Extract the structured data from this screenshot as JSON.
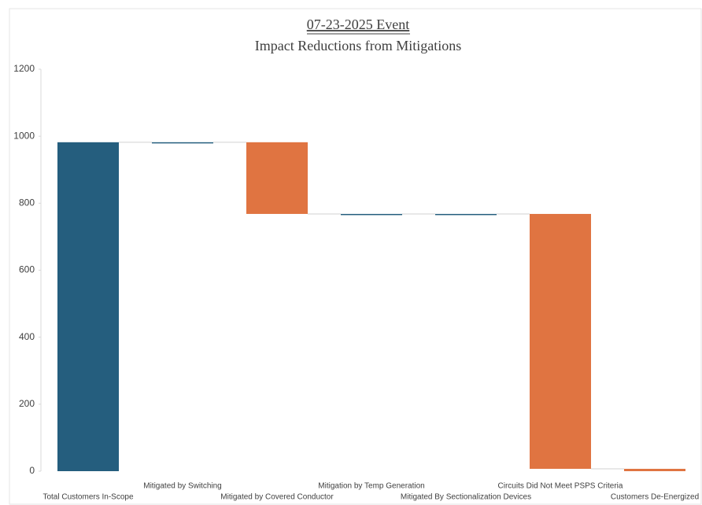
{
  "chart_data": {
    "type": "waterfall",
    "title": "07-23-2025 Event",
    "subtitle": "Impact Reductions from Mitigations",
    "categories": [
      "Total Customers In-Scope",
      "Mitigated by Switching",
      "Mitigated by Covered Conductor",
      "Mitigation by Temp Generation",
      "Mitigated By Sectionalization Devices",
      "Circuits Did Not Meet PSPS Criteria",
      "Customers De-Energized"
    ],
    "values": [
      982,
      0,
      -214,
      0,
      0,
      -761,
      7
    ],
    "is_total": [
      true,
      false,
      false,
      false,
      false,
      false,
      true
    ],
    "colors": [
      "#255e7e",
      "#255e7e",
      "#e07441",
      "#255e7e",
      "#255e7e",
      "#e07441",
      "#e07441"
    ],
    "ylim": [
      0,
      1200
    ],
    "yticks": [
      0,
      200,
      400,
      600,
      800,
      1000,
      1200
    ],
    "grid": false
  }
}
